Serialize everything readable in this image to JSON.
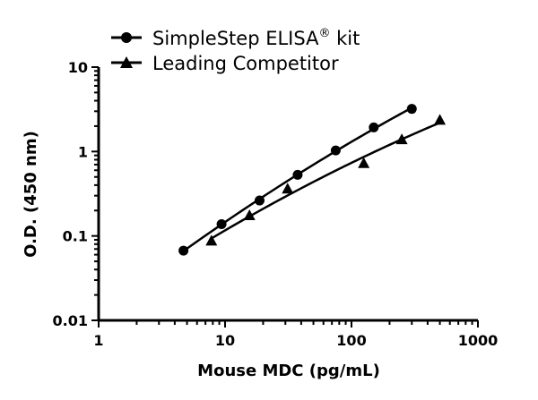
{
  "chart_data": {
    "type": "scatter",
    "xlabel": "Mouse MDC (pg/mL)",
    "ylabel": "O.D. (450 nm)",
    "xscale": "log",
    "yscale": "log",
    "xlim": [
      1,
      1000
    ],
    "ylim": [
      0.01,
      10
    ],
    "xticks": [
      "1",
      "10",
      "100",
      "1000"
    ],
    "yticks": [
      "0.01",
      "0.1",
      "1",
      "10"
    ],
    "grid": false,
    "legend_position": "top",
    "series": [
      {
        "name": "SimpleStep ELISA",
        "name_suffix": "®",
        "name_tail": " kit",
        "marker": "circle",
        "x": [
          4.69,
          9.38,
          18.75,
          37.5,
          75,
          150,
          300
        ],
        "y": [
          0.067,
          0.138,
          0.263,
          0.53,
          1.03,
          1.93,
          3.2
        ]
      },
      {
        "name": "Leading Competitor",
        "marker": "triangle",
        "x": [
          7.8,
          15.6,
          31.25,
          125,
          250,
          500
        ],
        "y": [
          0.087,
          0.174,
          0.36,
          0.72,
          1.38,
          2.35
        ]
      }
    ],
    "color": "#000000"
  }
}
